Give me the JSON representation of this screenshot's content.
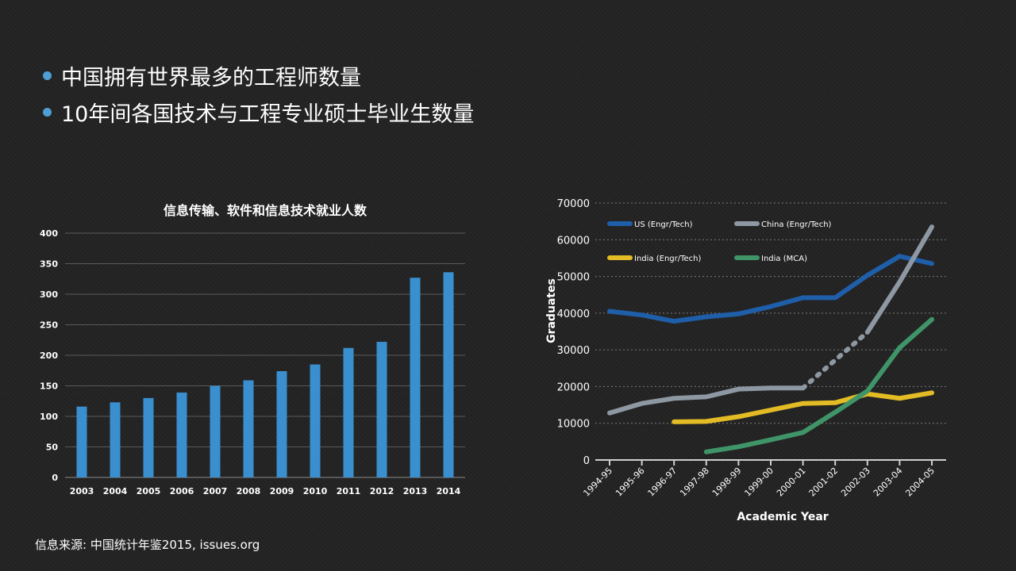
{
  "bullets": [
    "中国拥有世界最多的工程师数量",
    "10年间各国技术与工程专业硕士毕业生数量"
  ],
  "source_note": "信息来源: 中国统计年鉴2015, issues.org",
  "colors": {
    "bar": "#3a8fcf",
    "bullet_dot": "#4f9fd4",
    "us": "#1f5ea8",
    "china": "#8e98a3",
    "india_engr": "#e3bb25",
    "india_mca": "#3f9468"
  },
  "chart_data": [
    {
      "type": "bar",
      "title": "信息传输、软件和信息技术就业人数",
      "xlabel": "",
      "ylabel": "",
      "categories": [
        "2003",
        "2004",
        "2005",
        "2006",
        "2007",
        "2008",
        "2009",
        "2010",
        "2011",
        "2012",
        "2013",
        "2014"
      ],
      "values": [
        116,
        123,
        130,
        139,
        150,
        159,
        174,
        185,
        212,
        222,
        327,
        336
      ],
      "ylim": [
        0,
        400
      ],
      "yticks": [
        0,
        50,
        100,
        150,
        200,
        250,
        300,
        350,
        400
      ],
      "grid": true,
      "legend": "none"
    },
    {
      "type": "line",
      "title": "",
      "xlabel": "Academic Year",
      "ylabel": "Graduates",
      "categories": [
        "1994-95",
        "1995-96",
        "1996-97",
        "1997-98",
        "1998-99",
        "1999-00",
        "2000-01",
        "2001-02",
        "2002-03",
        "2003-04",
        "2004-05"
      ],
      "ylim": [
        0,
        70000
      ],
      "yticks": [
        0,
        10000,
        20000,
        30000,
        40000,
        50000,
        60000,
        70000
      ],
      "grid": true,
      "legend": "top-left",
      "series": [
        {
          "name": "US (Engr/Tech)",
          "color_key": "us",
          "values": [
            40500,
            39500,
            37800,
            39000,
            39800,
            41800,
            44200,
            44200,
            50300,
            55500,
            53500
          ]
        },
        {
          "name": "China (Engr/Tech)",
          "color_key": "china",
          "values": [
            12800,
            15400,
            16800,
            17200,
            19300,
            19600,
            19600,
            null,
            34800,
            48500,
            63500
          ],
          "dashed_segment": {
            "from": "2000-01",
            "to": "2002-03"
          }
        },
        {
          "name": "India (Engr/Tech)",
          "color_key": "india_engr",
          "values": [
            null,
            null,
            10400,
            10500,
            11800,
            13600,
            15400,
            15600,
            18000,
            16800,
            18300
          ]
        },
        {
          "name": "India (MCA)",
          "color_key": "india_mca",
          "values": [
            null,
            null,
            null,
            2200,
            3600,
            5500,
            7500,
            13000,
            18800,
            30600,
            38300
          ]
        }
      ]
    }
  ]
}
